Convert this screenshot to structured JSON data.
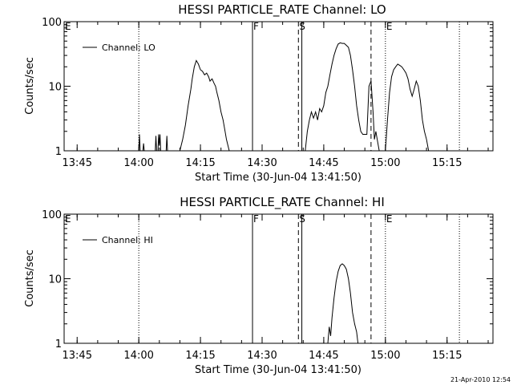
{
  "footer": {
    "timestamp": "21-Apr-2010 12:54"
  },
  "chart_data": [
    {
      "type": "line",
      "title": "HESSI PARTICLE_RATE Channel: LO",
      "xlabel": "Start Time (30-Jun-04 13:41:50)",
      "ylabel": "Counts/sec",
      "yscale": "log",
      "ylim": [
        1,
        100
      ],
      "xlim": [
        "13:41:50",
        "15:26:10"
      ],
      "x_ticks": [
        "13:45",
        "14:00",
        "14:15",
        "14:30",
        "14:45",
        "15:00",
        "15:15"
      ],
      "y_ticks": [
        "1",
        "10",
        "100"
      ],
      "legend": {
        "position": "top-left",
        "label": "Channel: LO"
      },
      "markers": [
        {
          "label": "E",
          "time": "13:41:50",
          "style": "dotted"
        },
        {
          "label": "",
          "time": "14:00:00",
          "style": "dotted"
        },
        {
          "label": "F",
          "time": "14:27:40",
          "style": "solid"
        },
        {
          "label": "S",
          "time": "14:38:50",
          "style": "dashed"
        },
        {
          "label": "",
          "time": "14:39:40",
          "style": "solid"
        },
        {
          "label": "",
          "time": "14:56:30",
          "style": "dashed"
        },
        {
          "label": "E",
          "time": "15:00:00",
          "style": "dotted"
        },
        {
          "label": "",
          "time": "15:18:00",
          "style": "dotted"
        }
      ],
      "series": [
        {
          "name": "Channel: LO",
          "segments": [
            {
              "x": [
                "14:00:00",
                "14:00:10",
                "14:00:20"
              ],
              "y": [
                1.0,
                1.8,
                1.0
              ]
            },
            {
              "x": [
                "14:01:00",
                "14:01:10",
                "14:01:20"
              ],
              "y": [
                1.0,
                1.3,
                1.0
              ]
            },
            {
              "x": [
                "14:04:00",
                "14:04:10",
                "14:04:20",
                "14:04:40",
                "14:04:50",
                "14:05:00",
                "14:05:10",
                "14:05:20"
              ],
              "y": [
                1.0,
                1.7,
                1.0,
                1.0,
                1.8,
                1.2,
                1.8,
                1.0
              ]
            },
            {
              "x": [
                "14:06:40",
                "14:06:50",
                "14:07:00"
              ],
              "y": [
                1.0,
                1.7,
                1.0
              ]
            },
            {
              "x": [
                "14:10:00",
                "14:10:40",
                "14:11:20",
                "14:12:00",
                "14:12:40",
                "14:13:00",
                "14:13:30",
                "14:14:00",
                "14:14:30",
                "14:15:00",
                "14:15:30",
                "14:16:00",
                "14:16:30",
                "14:17:00",
                "14:17:20",
                "14:17:50",
                "14:18:20",
                "14:18:40",
                "14:19:00",
                "14:19:30",
                "14:20:00",
                "14:20:30",
                "14:21:00",
                "14:21:20",
                "14:22:00"
              ],
              "y": [
                1.0,
                1.5,
                2.5,
                5.0,
                9.0,
                13.0,
                20.0,
                25.0,
                22.0,
                18.0,
                17.0,
                15.0,
                16.0,
                14.0,
                12.0,
                13.0,
                11.0,
                10.0,
                8.0,
                6.0,
                4.0,
                3.0,
                2.0,
                1.5,
                1.0
              ]
            },
            {
              "x": [
                "14:40:30",
                "14:41:00",
                "14:41:30",
                "14:42:00",
                "14:42:30",
                "14:43:00",
                "14:43:30",
                "14:44:00",
                "14:44:30",
                "14:45:00",
                "14:45:30",
                "14:46:00",
                "14:46:30",
                "14:47:00",
                "14:47:30",
                "14:48:00",
                "14:48:30",
                "14:49:00",
                "14:49:30",
                "14:50:00",
                "14:50:30",
                "14:51:00",
                "14:51:30",
                "14:52:00",
                "14:52:30",
                "14:53:00",
                "14:53:30",
                "14:54:00",
                "14:54:30",
                "14:55:00",
                "14:55:30",
                "14:56:00",
                "14:56:30",
                "14:57:00",
                "14:57:20",
                "14:57:40",
                "14:58:00",
                "14:58:30"
              ],
              "y": [
                1.0,
                2.0,
                3.0,
                4.0,
                3.2,
                4.0,
                3.0,
                4.5,
                4.0,
                5.0,
                8.0,
                10.0,
                15.0,
                22.0,
                30.0,
                38.0,
                45.0,
                47.0,
                46.0,
                46.0,
                43.0,
                40.0,
                30.0,
                18.0,
                10.0,
                5.0,
                3.0,
                2.0,
                1.8,
                1.8,
                1.8,
                10.0,
                12.0,
                4.0,
                1.5,
                2.0,
                1.5,
                1.0
              ]
            },
            {
              "x": [
                "15:00:00",
                "15:00:30",
                "15:01:00",
                "15:01:30",
                "15:02:00",
                "15:02:30",
                "15:03:00",
                "15:03:30",
                "15:04:00",
                "15:04:30",
                "15:05:00",
                "15:05:30",
                "15:06:00",
                "15:06:30",
                "15:07:00",
                "15:07:30",
                "15:08:00",
                "15:08:30",
                "15:09:00",
                "15:09:30",
                "15:10:00",
                "15:10:30"
              ],
              "y": [
                1.0,
                3.0,
                8.0,
                14.0,
                18.0,
                20.0,
                22.0,
                21.0,
                20.0,
                18.0,
                16.0,
                13.0,
                9.0,
                7.0,
                9.0,
                12.0,
                10.0,
                6.0,
                3.0,
                2.0,
                1.5,
                1.0
              ]
            }
          ]
        }
      ]
    },
    {
      "type": "line",
      "title": "HESSI PARTICLE_RATE Channel: HI",
      "xlabel": "Start Time (30-Jun-04 13:41:50)",
      "ylabel": "Counts/sec",
      "yscale": "log",
      "ylim": [
        1,
        100
      ],
      "xlim": [
        "13:41:50",
        "15:26:10"
      ],
      "x_ticks": [
        "13:45",
        "14:00",
        "14:15",
        "14:30",
        "14:45",
        "15:00",
        "15:15"
      ],
      "y_ticks": [
        "1",
        "10",
        "100"
      ],
      "legend": {
        "position": "top-left",
        "label": "Channel: HI"
      },
      "markers": [
        {
          "label": "E",
          "time": "13:41:50",
          "style": "dotted"
        },
        {
          "label": "",
          "time": "14:00:00",
          "style": "dotted"
        },
        {
          "label": "F",
          "time": "14:27:40",
          "style": "solid"
        },
        {
          "label": "S",
          "time": "14:38:50",
          "style": "dashed"
        },
        {
          "label": "",
          "time": "14:39:40",
          "style": "solid"
        },
        {
          "label": "",
          "time": "14:56:30",
          "style": "dashed"
        },
        {
          "label": "E",
          "time": "15:00:00",
          "style": "dotted"
        },
        {
          "label": "",
          "time": "15:18:00",
          "style": "dotted"
        }
      ],
      "series": [
        {
          "name": "Channel: HI",
          "segments": [
            {
              "x": [
                "14:46:00",
                "14:46:20",
                "14:46:40",
                "14:47:00",
                "14:47:30",
                "14:48:00",
                "14:48:30",
                "14:49:00",
                "14:49:30",
                "14:50:00",
                "14:50:30",
                "14:51:00",
                "14:51:30",
                "14:52:00",
                "14:52:30",
                "14:53:00",
                "14:53:20"
              ],
              "y": [
                1.0,
                1.8,
                1.3,
                2.5,
                5.0,
                9.0,
                13.0,
                16.0,
                17.0,
                16.0,
                14.0,
                10.0,
                6.0,
                3.0,
                2.0,
                1.5,
                1.0
              ]
            }
          ]
        }
      ]
    }
  ]
}
